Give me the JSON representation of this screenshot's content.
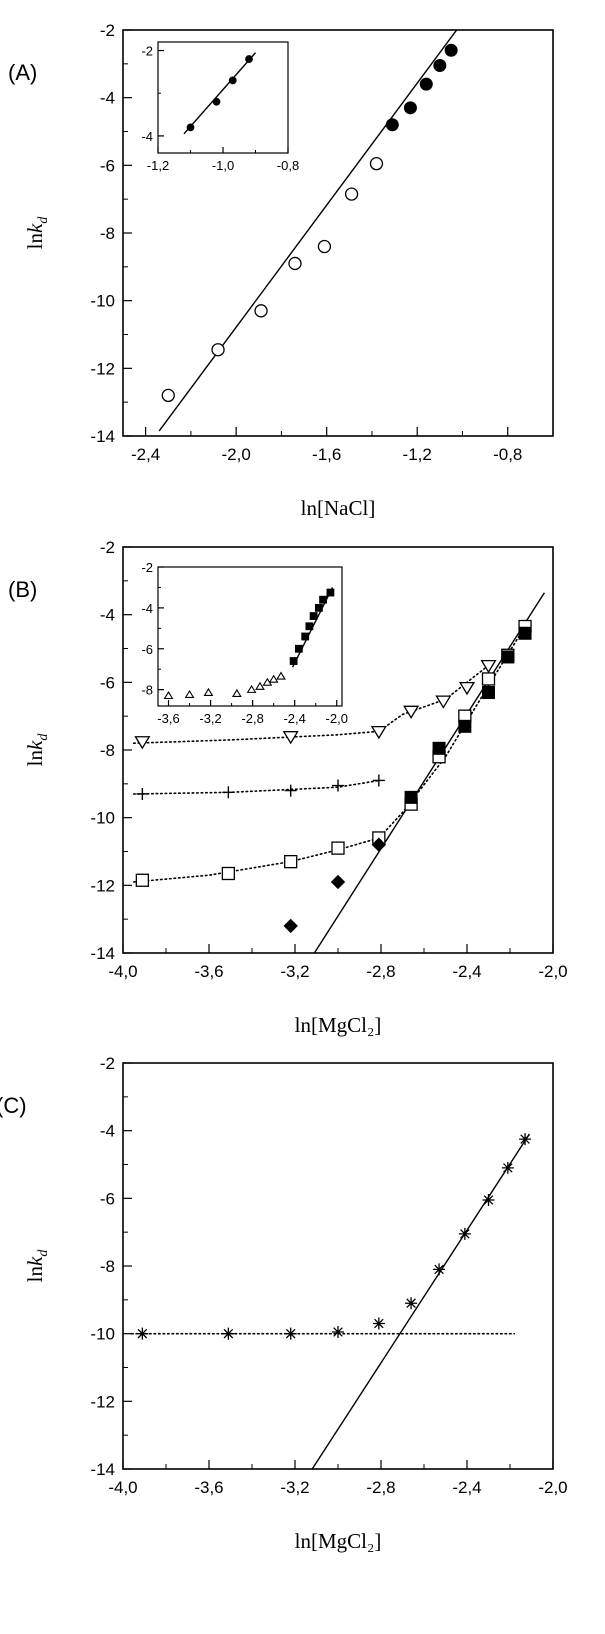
{
  "chart_data": [
    {
      "type": "scatter",
      "panel_label": "(A)",
      "xlabel": "ln[NaCl]",
      "ylabel": "lnk_d",
      "xlim": [
        -2.5,
        -0.6
      ],
      "ylim": [
        -14,
        -2
      ],
      "xticks": [
        -2.4,
        -2.0,
        -1.6,
        -1.2,
        -0.8
      ],
      "yticks": [
        -14,
        -12,
        -10,
        -8,
        -6,
        -4,
        -2
      ],
      "xtick_labels": [
        "-2,4",
        "-2,0",
        "-1,6",
        "-1,2",
        "-0,8"
      ],
      "ytick_labels": [
        "-14",
        "-12",
        "-10",
        "-8",
        "-6",
        "-4",
        "-2"
      ],
      "series": [
        {
          "marker": "circle-open",
          "x": [
            -2.3,
            -2.08,
            -1.89,
            -1.74,
            -1.61,
            -1.49,
            -1.38
          ],
          "y": [
            -12.8,
            -11.45,
            -10.3,
            -8.9,
            -8.4,
            -6.85,
            -5.95
          ]
        },
        {
          "marker": "circle-filled",
          "x": [
            -1.31,
            -1.23,
            -1.16,
            -1.1,
            -1.05
          ],
          "y": [
            -4.8,
            -4.3,
            -3.6,
            -3.05,
            -2.6
          ]
        }
      ],
      "lines": [
        {
          "style": "solid",
          "x": [
            -2.34,
            -1.02
          ],
          "y": [
            -13.85,
            -1.95
          ]
        }
      ],
      "inset": {
        "xlim": [
          -1.2,
          -0.8
        ],
        "ylim": [
          -4.4,
          -1.8
        ],
        "xticks": [
          -1.2,
          -1.0,
          -0.8
        ],
        "yticks": [
          -4,
          -2
        ],
        "xtick_labels": [
          "-1,2",
          "-1,0",
          "-0,8"
        ],
        "ytick_labels": [
          "-4",
          "-2"
        ],
        "series": [
          {
            "marker": "circle-filled",
            "x": [
              -1.1,
              -1.02,
              -0.97,
              -0.92
            ],
            "y": [
              -3.8,
              -3.2,
              -2.7,
              -2.2
            ]
          }
        ],
        "lines": [
          {
            "style": "solid",
            "x": [
              -1.12,
              -0.9
            ],
            "y": [
              -3.95,
              -2.05
            ]
          }
        ]
      }
    },
    {
      "type": "scatter",
      "panel_label": "(B)",
      "xlabel": "ln[MgCl₂]",
      "ylabel": "lnk_d",
      "xlim": [
        -4.0,
        -2.0
      ],
      "ylim": [
        -14,
        -2
      ],
      "xticks": [
        -4.0,
        -3.6,
        -3.2,
        -2.8,
        -2.4,
        -2.0
      ],
      "yticks": [
        -14,
        -12,
        -10,
        -8,
        -6,
        -4,
        -2
      ],
      "xtick_labels": [
        "-4,0",
        "-3,6",
        "-3,2",
        "-2,8",
        "-2,4",
        "-2,0"
      ],
      "ytick_labels": [
        "-14",
        "-12",
        "-10",
        "-8",
        "-6",
        "-4",
        "-2"
      ],
      "series": [
        {
          "marker": "triangle-down-open",
          "x": [
            -3.91,
            -3.22,
            -2.81,
            -2.66,
            -2.51,
            -2.4,
            -2.3
          ],
          "y": [
            -7.75,
            -7.6,
            -7.45,
            -6.85,
            -6.55,
            -6.15,
            -5.5
          ]
        },
        {
          "marker": "plus",
          "x": [
            -3.91,
            -3.51,
            -3.22,
            -3.0,
            -2.81
          ],
          "y": [
            -9.3,
            -9.25,
            -9.2,
            -9.05,
            -8.9
          ]
        },
        {
          "marker": "square-open",
          "x": [
            -3.91,
            -3.51,
            -3.22,
            -3.0,
            -2.81,
            -2.66,
            -2.53,
            -2.41,
            -2.3,
            -2.21,
            -2.13
          ],
          "y": [
            -11.85,
            -11.65,
            -11.3,
            -10.9,
            -10.6,
            -9.6,
            -8.2,
            -7.0,
            -5.9,
            -5.2,
            -4.35
          ]
        },
        {
          "marker": "square-filled",
          "x": [
            -2.66,
            -2.53,
            -2.41,
            -2.3,
            -2.21,
            -2.13
          ],
          "y": [
            -9.4,
            -7.95,
            -7.3,
            -6.3,
            -5.25,
            -4.55
          ]
        },
        {
          "marker": "diamond-filled",
          "x": [
            -3.22,
            -3.0,
            -2.81
          ],
          "y": [
            -13.2,
            -11.9,
            -10.8
          ]
        }
      ],
      "lines": [
        {
          "style": "solid",
          "x": [
            -3.11,
            -2.04
          ],
          "y": [
            -14.0,
            -3.35
          ]
        },
        {
          "style": "dotted",
          "x": [
            -3.95,
            -3.5,
            -3.0,
            -2.81,
            -2.7,
            -2.5,
            -2.3
          ],
          "y": [
            -7.8,
            -7.7,
            -7.55,
            -7.45,
            -6.95,
            -6.5,
            -5.5
          ]
        },
        {
          "style": "dotted",
          "x": [
            -3.95,
            -3.5,
            -3.0,
            -2.81
          ],
          "y": [
            -9.3,
            -9.25,
            -9.1,
            -8.9
          ]
        },
        {
          "style": "dotted",
          "x": [
            -3.95,
            -3.6,
            -3.22,
            -3.0,
            -2.81,
            -2.7,
            -2.5,
            -2.3,
            -2.13
          ],
          "y": [
            -11.9,
            -11.7,
            -11.3,
            -10.95,
            -10.6,
            -9.85,
            -8.2,
            -6.1,
            -4.35
          ]
        }
      ],
      "inset": {
        "xlim": [
          -3.7,
          -1.95
        ],
        "ylim": [
          -8.8,
          -2.0
        ],
        "xticks": [
          -3.6,
          -3.2,
          -2.8,
          -2.4,
          -2.0
        ],
        "yticks": [
          -8,
          -6,
          -4,
          -2
        ],
        "xtick_labels": [
          "-3,6",
          "-3,2",
          "-2,8",
          "-2,4",
          "-2,0"
        ],
        "ytick_labels": [
          "-8",
          "-6",
          "-4",
          "-2"
        ],
        "series": [
          {
            "marker": "triangle-up-open",
            "x": [
              -3.6,
              -3.4,
              -3.22,
              -2.95,
              -2.81,
              -2.73,
              -2.66,
              -2.6,
              -2.53
            ],
            "y": [
              -8.3,
              -8.25,
              -8.15,
              -8.2,
              -8.0,
              -7.85,
              -7.65,
              -7.5,
              -7.35
            ]
          },
          {
            "marker": "square-filled",
            "x": [
              -2.41,
              -2.36,
              -2.3,
              -2.26,
              -2.22,
              -2.17,
              -2.13,
              -2.06
            ],
            "y": [
              -6.6,
              -6.0,
              -5.4,
              -4.9,
              -4.4,
              -4.0,
              -3.6,
              -3.25
            ]
          }
        ],
        "lines": [
          {
            "style": "solid",
            "x": [
              -2.42,
              -2.04
            ],
            "y": [
              -6.9,
              -3.0
            ]
          }
        ]
      }
    },
    {
      "type": "scatter",
      "panel_label": "(C)",
      "xlabel": "ln[MgCl₂]",
      "ylabel": "lnk_d",
      "xlim": [
        -4.0,
        -2.0
      ],
      "ylim": [
        -14,
        -2
      ],
      "xticks": [
        -4.0,
        -3.6,
        -3.2,
        -2.8,
        -2.4,
        -2.0
      ],
      "yticks": [
        -14,
        -12,
        -10,
        -8,
        -6,
        -4,
        -2
      ],
      "xtick_labels": [
        "-4,0",
        "-3,6",
        "-3,2",
        "-2,8",
        "-2,4",
        "-2,0"
      ],
      "ytick_labels": [
        "-14",
        "-12",
        "-10",
        "-8",
        "-6",
        "-4",
        "-2"
      ],
      "series": [
        {
          "marker": "asterisk",
          "x": [
            -3.91,
            -3.51,
            -3.22,
            -3.0,
            -2.81,
            -2.66,
            -2.53,
            -2.41,
            -2.3,
            -2.21,
            -2.13
          ],
          "y": [
            -10.0,
            -10.0,
            -10.0,
            -9.95,
            -9.7,
            -9.1,
            -8.1,
            -7.05,
            -6.05,
            -5.1,
            -4.25
          ]
        }
      ],
      "lines": [
        {
          "style": "solid",
          "x": [
            -3.12,
            -2.11
          ],
          "y": [
            -14.0,
            -4.1
          ]
        },
        {
          "style": "dotted",
          "x": [
            -3.96,
            -2.18
          ],
          "y": [
            -10.0,
            -10.0
          ]
        }
      ]
    }
  ]
}
